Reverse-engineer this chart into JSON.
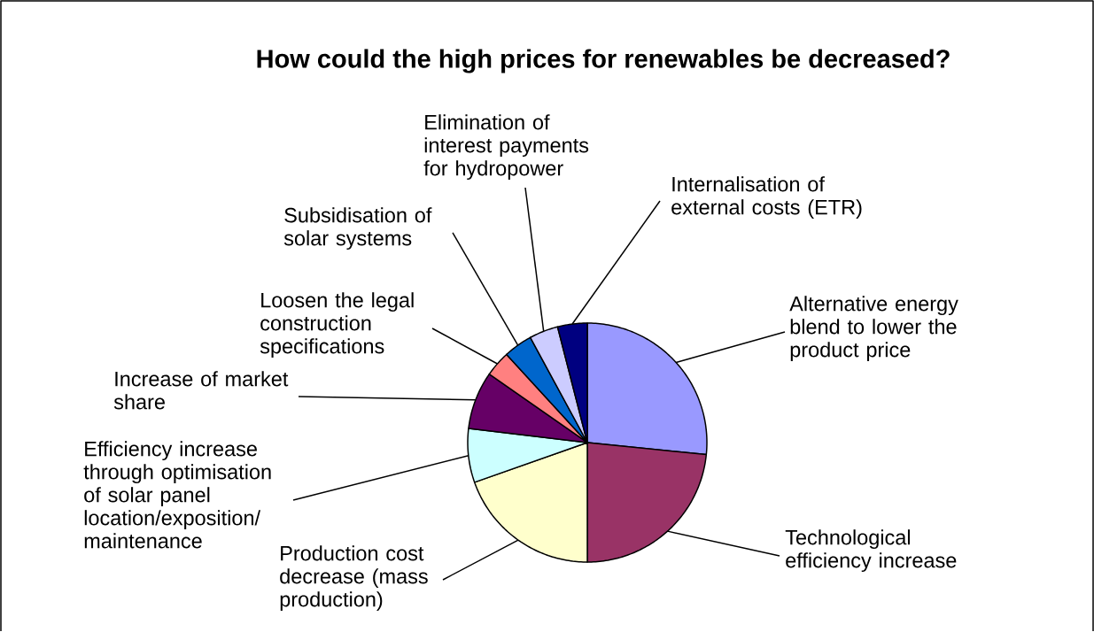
{
  "chart_data": {
    "type": "pie",
    "title": "How could the high prices for renewables be decreased?",
    "categories": [
      "Alternative energy blend  to lower the product price",
      "Technological efficiency increase",
      "Production cost decrease (mass production)",
      "Efficiency increase through optimisation of solar panel location/exposition/ maintenance",
      "Increase of market share",
      "Loosen the legal construction specifications",
      "Subsidisation of solar systems",
      "Elimination of interest payments for hydropower",
      "Internalisation of external costs (ETR)"
    ],
    "values": [
      26.6,
      23.4,
      19.6,
      7.3,
      7.8,
      3.5,
      3.9,
      3.9,
      4.0
    ],
    "colors": [
      "#9999ff",
      "#993366",
      "#ffffcc",
      "#ccffff",
      "#660066",
      "#ff8080",
      "#0066cc",
      "#ccccff",
      "#000080"
    ]
  }
}
